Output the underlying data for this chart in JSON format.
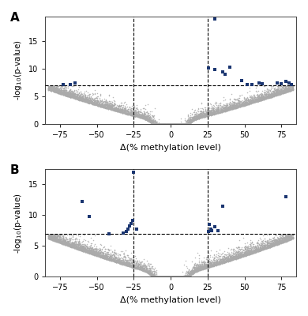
{
  "xlim": [
    -85,
    85
  ],
  "ylim_A": [
    0,
    19.5
  ],
  "ylim_B": [
    0,
    17.5
  ],
  "yticks": [
    0,
    5,
    10,
    15
  ],
  "xticks": [
    -75,
    -50,
    -25,
    0,
    25,
    50,
    75
  ],
  "vline_x": [
    -25,
    25
  ],
  "hline_y": 7.0,
  "gray_color": "#aaaaaa",
  "blue_color": "#1a3570",
  "xlabel": "Δ(% methylation level)",
  "ylabel": "-log$_{10}$(p-value)",
  "panel_A_label": "A",
  "panel_B_label": "B",
  "panel_A_blue_points": [
    [
      30,
      19.0
    ],
    [
      25.5,
      10.2
    ],
    [
      30,
      9.8
    ],
    [
      35,
      9.5
    ],
    [
      40,
      10.3
    ],
    [
      37,
      9.0
    ],
    [
      72,
      7.5
    ],
    [
      75,
      7.3
    ],
    [
      78,
      7.7
    ],
    [
      80,
      7.4
    ],
    [
      82,
      7.2
    ],
    [
      60,
      7.5
    ],
    [
      62,
      7.3
    ],
    [
      -65,
      7.4
    ],
    [
      -68,
      7.2
    ],
    [
      -73,
      7.1
    ],
    [
      48,
      7.8
    ],
    [
      52,
      7.1
    ],
    [
      55,
      7.2
    ]
  ],
  "panel_B_blue_points": [
    [
      -25,
      17.0
    ],
    [
      -60,
      12.2
    ],
    [
      -55,
      9.8
    ],
    [
      -26,
      9.2
    ],
    [
      -27,
      8.7
    ],
    [
      -28,
      8.2
    ],
    [
      -29,
      7.8
    ],
    [
      -23,
      7.7
    ],
    [
      -30,
      7.4
    ],
    [
      -32,
      7.1
    ],
    [
      26,
      8.5
    ],
    [
      27,
      7.8
    ],
    [
      28,
      7.5
    ],
    [
      25.5,
      7.3
    ],
    [
      78,
      13.0
    ],
    [
      35,
      11.5
    ],
    [
      30,
      8.1
    ],
    [
      32,
      7.5
    ],
    [
      -42,
      7.0
    ]
  ],
  "dpi": 100,
  "figsize": [
    3.9,
    4.0
  ],
  "seed_A": 42,
  "seed_B": 123,
  "n_gray_points": 9000,
  "background_color": "#ffffff"
}
